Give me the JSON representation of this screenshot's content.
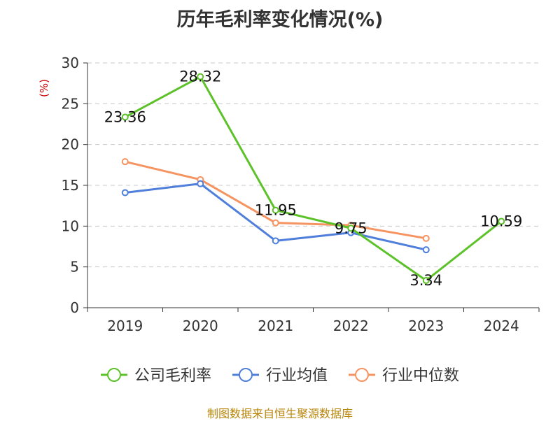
{
  "title": "历年毛利率变化情况(%)",
  "source_text": "制图数据来自恒生聚源数据库",
  "colors": {
    "company": "#5dc22a",
    "industry_avg": "#4f7fdb",
    "industry_median": "#f59461",
    "unit": "#cc0000",
    "source": "#b8860b"
  },
  "chart_data": {
    "type": "line",
    "title": "历年毛利率变化情况(%)",
    "ylabel": "(%)",
    "xlabel": "",
    "categories": [
      "2019",
      "2020",
      "2021",
      "2022",
      "2023",
      "2024"
    ],
    "ylim": [
      0,
      30
    ],
    "yticks": [
      0,
      5,
      10,
      15,
      20,
      25,
      30
    ],
    "grid": true,
    "legend_position": "bottom",
    "series": [
      {
        "name": "公司毛利率",
        "color": "#5dc22a",
        "values": [
          23.36,
          28.32,
          11.95,
          9.75,
          3.34,
          10.59
        ],
        "labels": [
          "23.36",
          "28.32",
          "11.95",
          "9.75",
          "3.34",
          "10.59"
        ]
      },
      {
        "name": "行业均值",
        "color": "#4f7fdb",
        "values": [
          14.1,
          15.2,
          8.2,
          9.2,
          7.1,
          null
        ],
        "labels": []
      },
      {
        "name": "行业中位数",
        "color": "#f59461",
        "values": [
          17.9,
          15.7,
          10.4,
          10.1,
          8.5,
          null
        ],
        "labels": []
      }
    ]
  }
}
